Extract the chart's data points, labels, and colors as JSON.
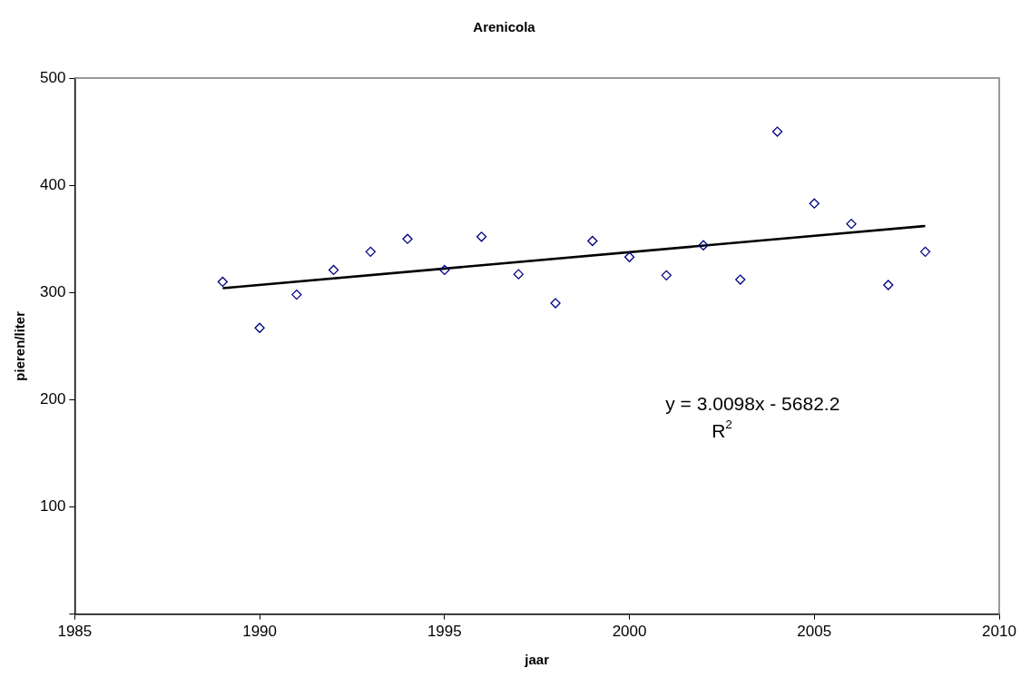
{
  "chart_data": {
    "type": "scatter",
    "title": "Arenicola",
    "xlabel": "jaar",
    "ylabel": "pieren/liter",
    "x": [
      1989,
      1990,
      1991,
      1992,
      1993,
      1994,
      1995,
      1996,
      1997,
      1998,
      1999,
      2000,
      2001,
      2002,
      2003,
      2004,
      2005,
      2006,
      2007,
      2008
    ],
    "series": [
      {
        "color": "#000080",
        "values": [
          310,
          267,
          298,
          321,
          338,
          350,
          321,
          352,
          317,
          290,
          348,
          333,
          316,
          344,
          312,
          450,
          383,
          364,
          307,
          338
        ]
      },
      {
        "type": "line",
        "color": "#000000",
        "x": [
          1989,
          2008
        ],
        "values": [
          304,
          362
        ],
        "marker": "none"
      }
    ],
    "marker": "diamond",
    "xlim": [
      1985,
      2010
    ],
    "xticks": [
      1985,
      1990,
      1995,
      2000,
      2005,
      2010
    ],
    "ylim": [
      0,
      500
    ],
    "yticks": [
      {
        "value": 0,
        "label": null
      },
      100,
      200,
      300,
      400,
      500
    ],
    "annotations": [
      "y = 3.0098x - 5682.2",
      "R$^{2}$"
    ],
    "grid": false,
    "legend": false
  }
}
